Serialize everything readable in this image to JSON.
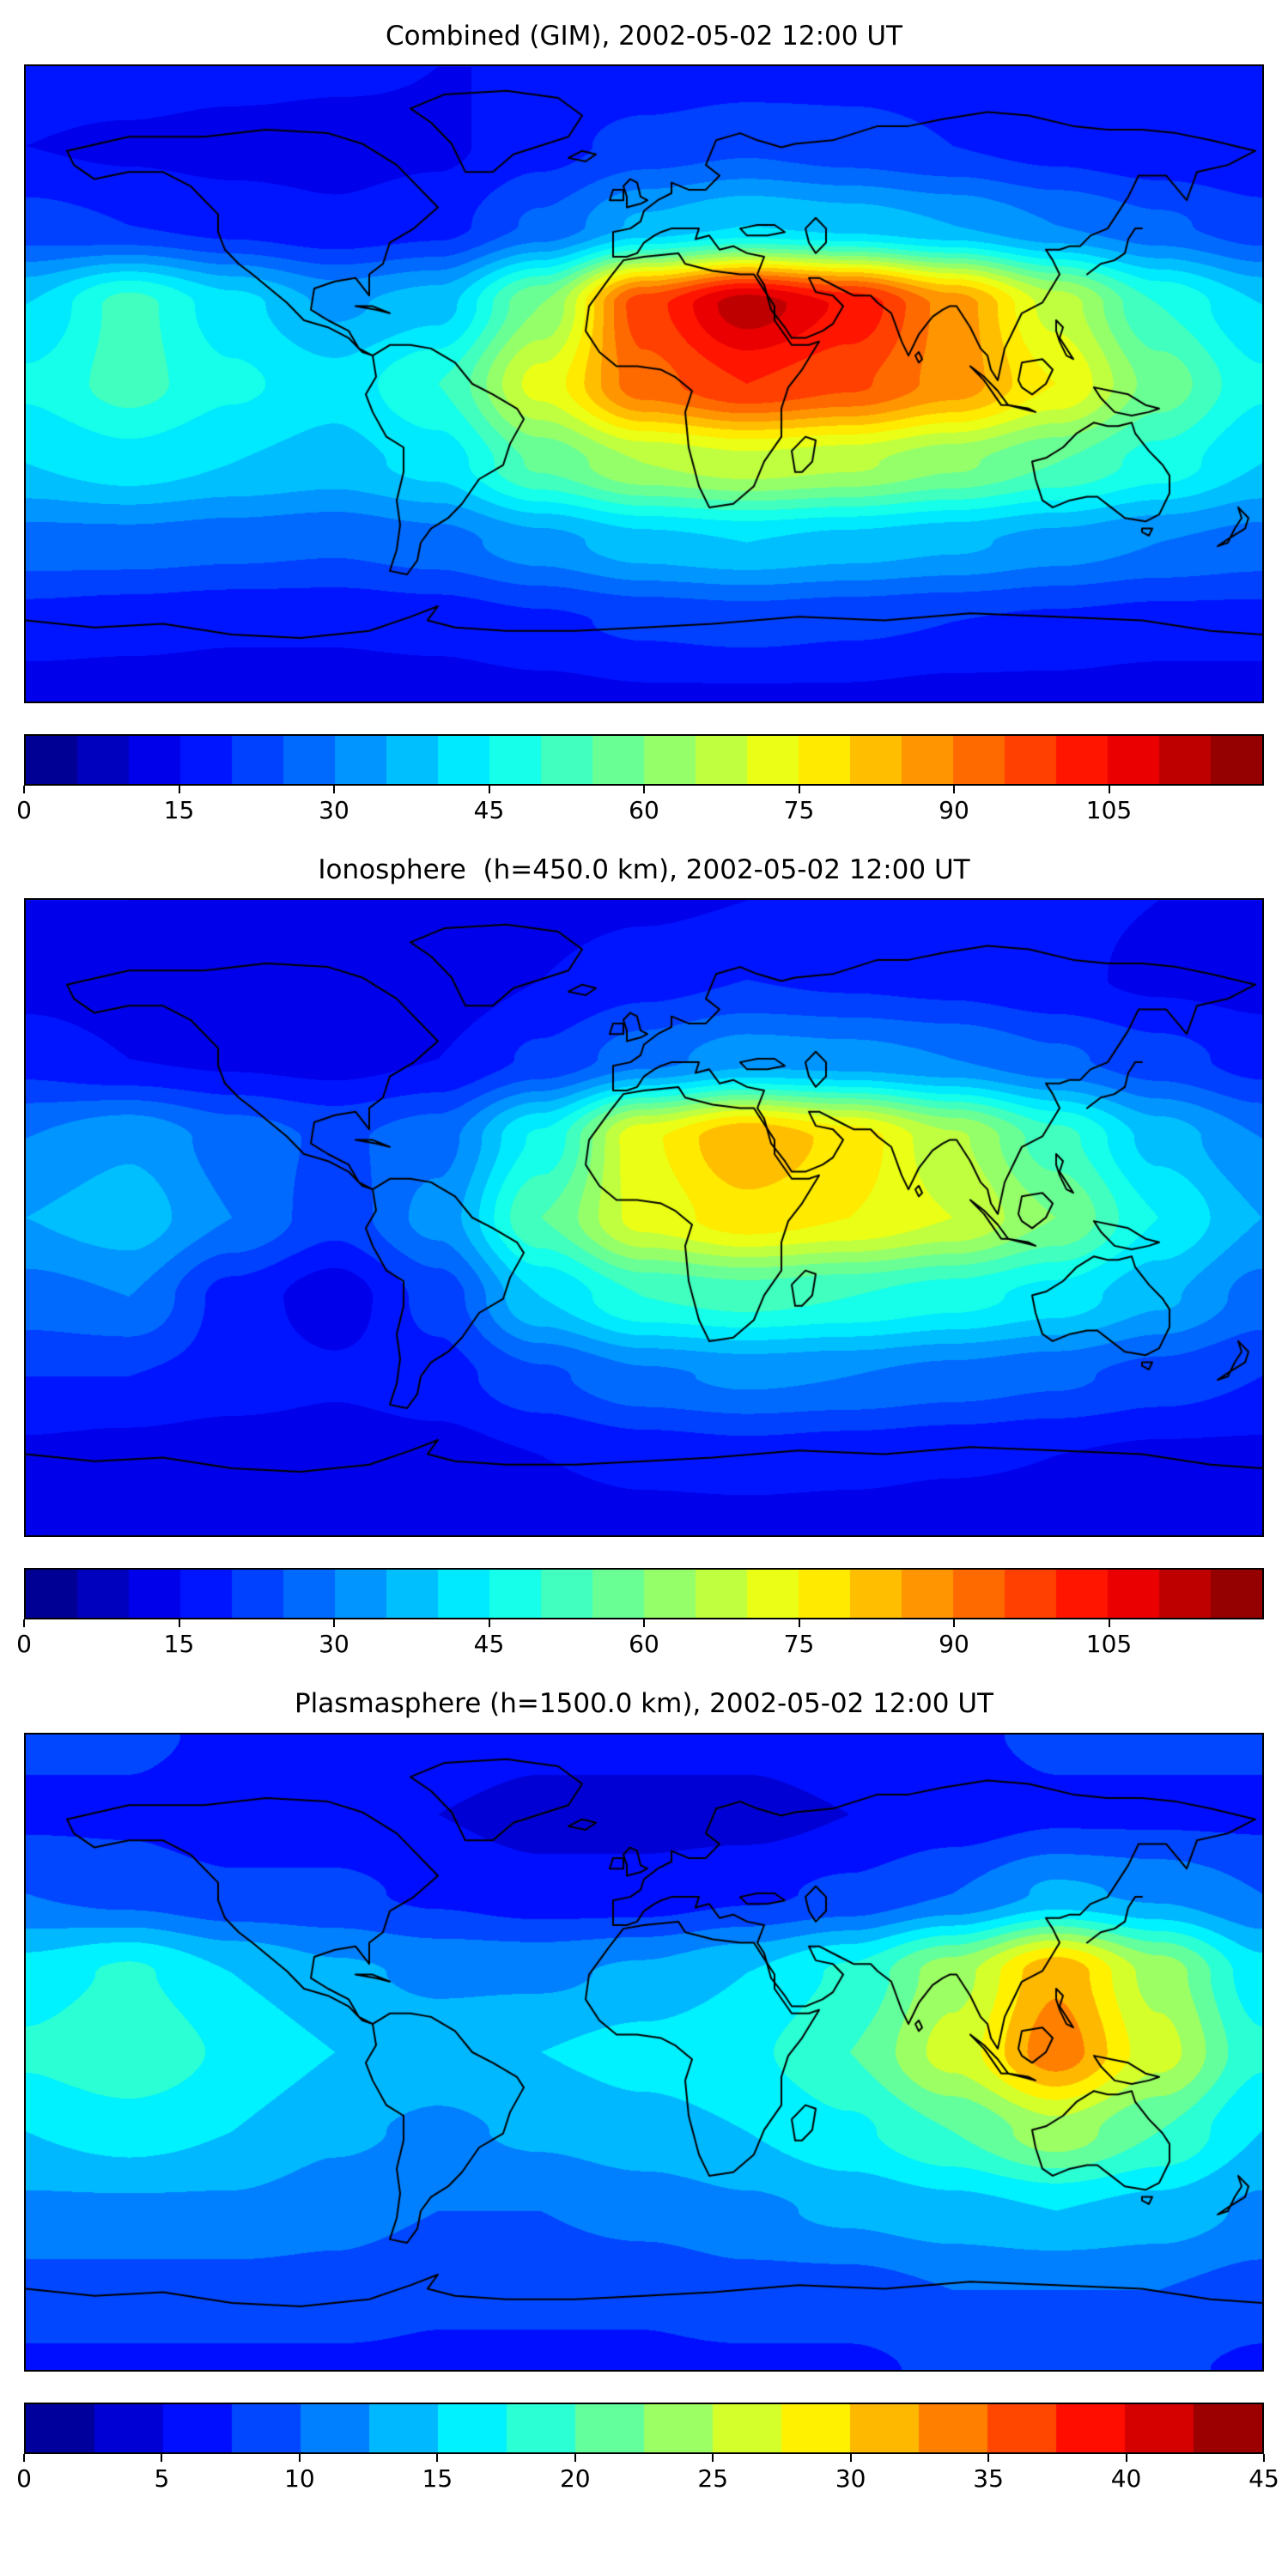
{
  "figure": {
    "description": "Three stacked equirectangular world maps of total electron content with jet colormap contour fills, black coastlines and horizontal discrete colorbars"
  },
  "chart_data": [
    {
      "type": "heatmap",
      "title": "Combined (GIM), 2002-05-02 12:00 UT",
      "colormap": "jet",
      "projection": "equirectangular",
      "vmin": 0,
      "vmax": 120,
      "contour_step": 5,
      "colorbar_ticks": [
        0,
        15,
        30,
        45,
        60,
        75,
        90,
        105
      ],
      "lon": [
        -180,
        -150,
        -120,
        -90,
        -60,
        -30,
        0,
        30,
        60,
        90,
        120,
        150,
        180
      ],
      "lat": [
        90,
        67.5,
        45,
        22.5,
        0,
        -22.5,
        -45,
        -67.5,
        -90
      ],
      "values": [
        [
          18,
          18,
          17,
          16,
          15,
          15,
          16,
          17,
          18,
          18,
          18,
          18,
          18
        ],
        [
          15,
          14,
          13,
          13,
          14,
          18,
          22,
          24,
          22,
          20,
          18,
          16,
          15
        ],
        [
          22,
          20,
          18,
          16,
          18,
          26,
          36,
          40,
          38,
          35,
          30,
          26,
          22
        ],
        [
          40,
          52,
          42,
          34,
          38,
          60,
          98,
          113,
          104,
          88,
          68,
          50,
          40
        ],
        [
          46,
          52,
          46,
          42,
          50,
          72,
          93,
          100,
          96,
          88,
          75,
          58,
          46
        ],
        [
          40,
          43,
          40,
          38,
          42,
          56,
          65,
          68,
          66,
          61,
          55,
          48,
          40
        ],
        [
          28,
          28,
          27,
          26,
          28,
          33,
          38,
          40,
          38,
          36,
          33,
          30,
          28
        ],
        [
          18,
          17,
          16,
          16,
          17,
          19,
          21,
          22,
          21,
          20,
          19,
          18,
          18
        ],
        [
          12,
          12,
          12,
          12,
          12,
          13,
          14,
          14,
          14,
          13,
          13,
          12,
          12
        ]
      ]
    },
    {
      "type": "heatmap",
      "title": "Ionosphere  (h=450.0 km), 2002-05-02 12:00 UT",
      "colormap": "jet",
      "projection": "equirectangular",
      "vmin": 0,
      "vmax": 120,
      "contour_step": 5,
      "colorbar_ticks": [
        0,
        15,
        30,
        45,
        60,
        75,
        90,
        105
      ],
      "lon": [
        -180,
        -150,
        -120,
        -90,
        -60,
        -30,
        0,
        30,
        60,
        90,
        120,
        150,
        180
      ],
      "lat": [
        90,
        67.5,
        45,
        22.5,
        0,
        -22.5,
        -45,
        -67.5,
        -90
      ],
      "values": [
        [
          15,
          15,
          14,
          13,
          13,
          13,
          14,
          15,
          16,
          16,
          16,
          15,
          15
        ],
        [
          13,
          12,
          11,
          11,
          12,
          15,
          18,
          20,
          19,
          18,
          16,
          14,
          13
        ],
        [
          18,
          15,
          14,
          13,
          15,
          21,
          28,
          33,
          32,
          30,
          26,
          22,
          18
        ],
        [
          30,
          34,
          28,
          24,
          28,
          46,
          74,
          85,
          78,
          66,
          52,
          38,
          30
        ],
        [
          35,
          38,
          30,
          22,
          32,
          55,
          72,
          78,
          75,
          70,
          60,
          45,
          35
        ],
        [
          28,
          30,
          18,
          12,
          22,
          40,
          50,
          52,
          50,
          47,
          43,
          36,
          28
        ],
        [
          20,
          20,
          18,
          16,
          18,
          24,
          29,
          31,
          30,
          28,
          26,
          23,
          20
        ],
        [
          14,
          13,
          12,
          12,
          13,
          15,
          17,
          18,
          17,
          16,
          15,
          14,
          14
        ],
        [
          10,
          10,
          10,
          10,
          10,
          11,
          12,
          12,
          12,
          11,
          11,
          10,
          10
        ]
      ]
    },
    {
      "type": "heatmap",
      "title": "Plasmasphere (h=1500.0 km), 2002-05-02 12:00 UT",
      "colormap": "jet",
      "projection": "equirectangular",
      "vmin": 0,
      "vmax": 45,
      "contour_step": 2.5,
      "colorbar_ticks": [
        0,
        5,
        10,
        15,
        20,
        25,
        30,
        35,
        40,
        45
      ],
      "lon": [
        -180,
        -150,
        -120,
        -90,
        -60,
        -30,
        0,
        30,
        60,
        90,
        120,
        150,
        180
      ],
      "lat": [
        90,
        67.5,
        45,
        22.5,
        0,
        -22.5,
        -45,
        -67.5,
        -90
      ],
      "values": [
        [
          8,
          8,
          7,
          7,
          7,
          6,
          6,
          6,
          7,
          7,
          8,
          8,
          8
        ],
        [
          7,
          7,
          6,
          6,
          5,
          4,
          4,
          4,
          5,
          6,
          7,
          7,
          7
        ],
        [
          10,
          9,
          8,
          8,
          7,
          6,
          6,
          7,
          8,
          10,
          13,
          12,
          10
        ],
        [
          16,
          18,
          15,
          13,
          12,
          12,
          13,
          15,
          18,
          24,
          32,
          24,
          16
        ],
        [
          18,
          20,
          17,
          15,
          14,
          15,
          16,
          17,
          20,
          26,
          34,
          26,
          18
        ],
        [
          15,
          16,
          15,
          13,
          12,
          13,
          14,
          15,
          17,
          20,
          24,
          20,
          15
        ],
        [
          12,
          12,
          12,
          11,
          10,
          10,
          11,
          12,
          13,
          14,
          15,
          14,
          12
        ],
        [
          9,
          9,
          9,
          9,
          8,
          8,
          8,
          9,
          9,
          10,
          10,
          10,
          9
        ],
        [
          7,
          7,
          7,
          7,
          7,
          7,
          7,
          7,
          7,
          8,
          8,
          8,
          7
        ]
      ]
    }
  ]
}
